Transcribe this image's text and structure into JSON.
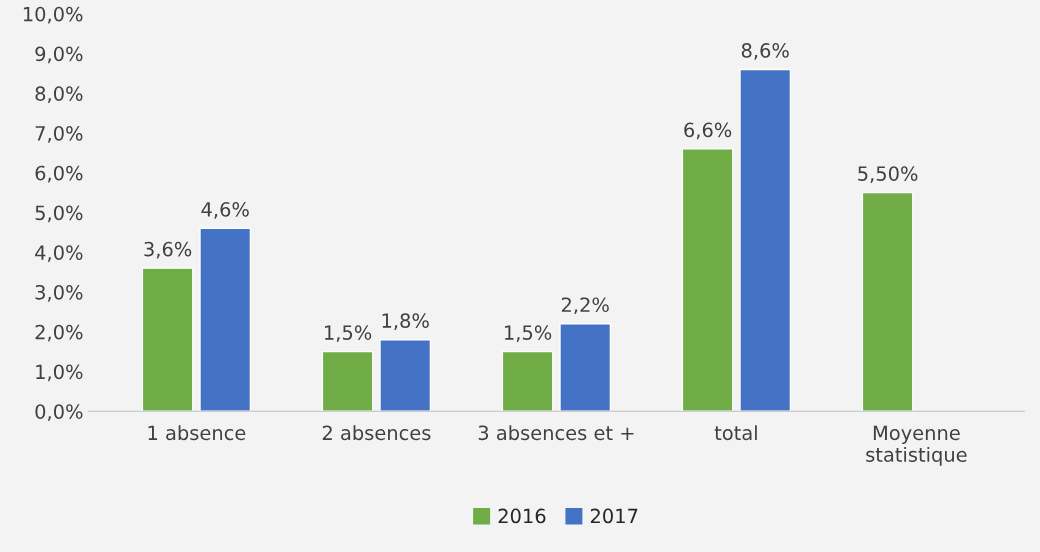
{
  "chart_data": {
    "type": "bar",
    "categories": [
      "1 absence",
      "2 absences",
      "3 absences et +",
      "total",
      "Moyenne\nstatistique"
    ],
    "series": [
      {
        "name": "2016",
        "color": "#70ad47",
        "values": [
          3.6,
          1.5,
          1.5,
          6.6,
          5.5
        ],
        "value_labels": [
          "3,6%",
          "1,5%",
          "1,5%",
          "6,6%",
          "5,50%"
        ]
      },
      {
        "name": "2017",
        "color": "#4472c4",
        "values": [
          4.6,
          1.8,
          2.2,
          8.6,
          null
        ],
        "value_labels": [
          "4,6%",
          "1,8%",
          "2,2%",
          "8,6%",
          null
        ]
      }
    ],
    "ylim": [
      0,
      10
    ],
    "yticks": [
      {
        "value": 0,
        "label": "0,0%"
      },
      {
        "value": 1,
        "label": "1,0%"
      },
      {
        "value": 2,
        "label": "2,0%"
      },
      {
        "value": 3,
        "label": "3,0%"
      },
      {
        "value": 4,
        "label": "4,0%"
      },
      {
        "value": 5,
        "label": "5,0%"
      },
      {
        "value": 6,
        "label": "6,0%"
      },
      {
        "value": 7,
        "label": "7,0%"
      },
      {
        "value": 8,
        "label": "8,0%"
      },
      {
        "value": 9,
        "label": "9,0%"
      },
      {
        "value": 10,
        "label": "10,0%"
      }
    ],
    "grid": false,
    "legend": "bottom"
  }
}
